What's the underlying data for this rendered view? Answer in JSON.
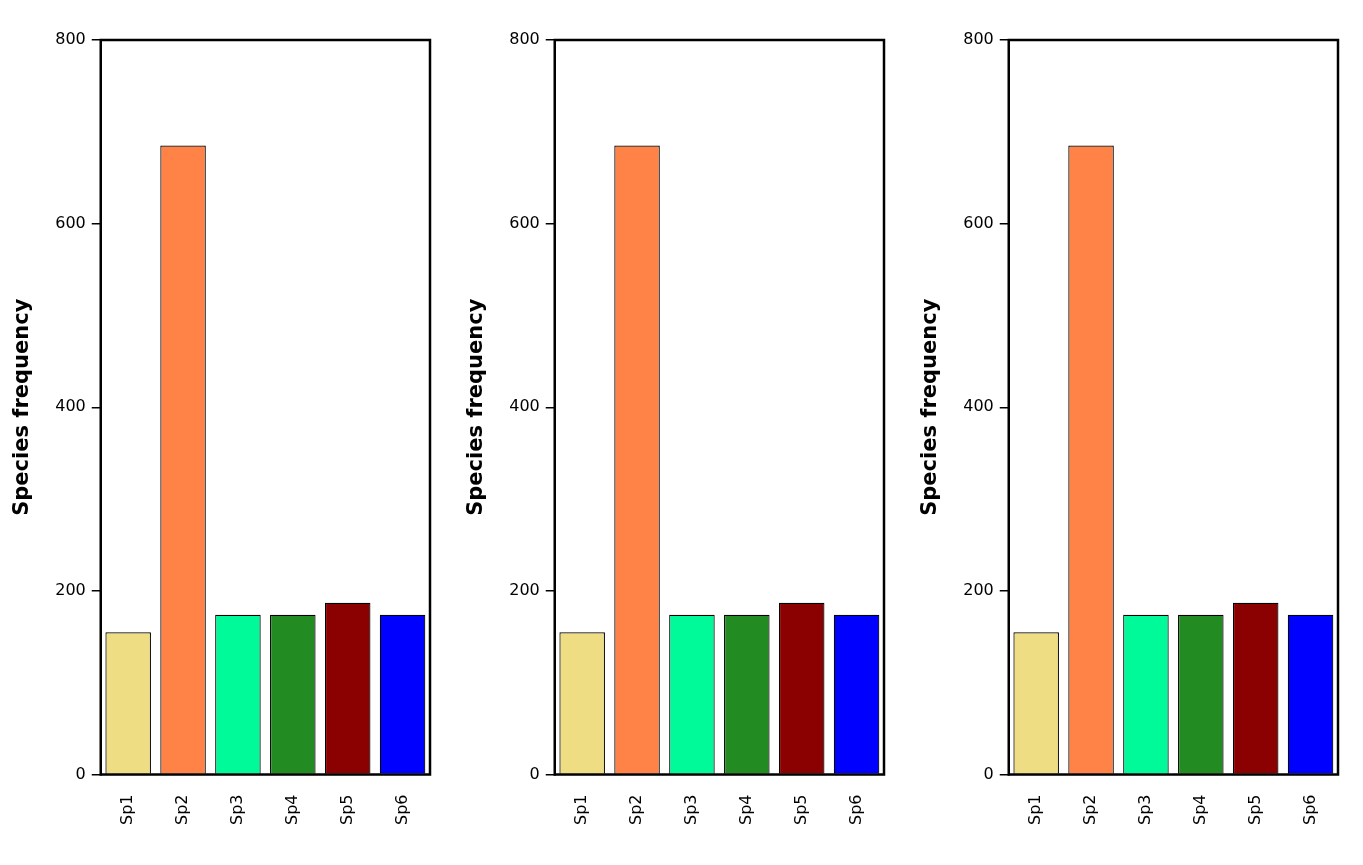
{
  "chart_data": [
    {
      "type": "bar",
      "y_label": "Species frequency",
      "categories": [
        "Sp1",
        "Sp2",
        "Sp3",
        "Sp4",
        "Sp5",
        "Sp6"
      ],
      "values": [
        155,
        685,
        174,
        174,
        187,
        174
      ],
      "colors": [
        "#EEDD82",
        "#FF8247",
        "#00FA9A",
        "#228B22",
        "#8B0000",
        "#0000FF"
      ],
      "ylim": [
        0,
        800
      ],
      "yticks": [
        0,
        200,
        400,
        600,
        800
      ],
      "grid": false
    },
    {
      "type": "bar",
      "y_label": "Species frequency",
      "categories": [
        "Sp1",
        "Sp2",
        "Sp3",
        "Sp4",
        "Sp5",
        "Sp6"
      ],
      "values": [
        155,
        685,
        174,
        174,
        187,
        174
      ],
      "colors": [
        "#EEDD82",
        "#FF8247",
        "#00FA9A",
        "#228B22",
        "#8B0000",
        "#0000FF"
      ],
      "ylim": [
        0,
        800
      ],
      "yticks": [
        0,
        200,
        400,
        600,
        800
      ],
      "grid": false
    },
    {
      "type": "bar",
      "y_label": "Species frequency",
      "categories": [
        "Sp1",
        "Sp2",
        "Sp3",
        "Sp4",
        "Sp5",
        "Sp6"
      ],
      "values": [
        155,
        685,
        174,
        174,
        187,
        174
      ],
      "colors": [
        "#EEDD82",
        "#FF8247",
        "#00FA9A",
        "#228B22",
        "#8B0000",
        "#0000FF"
      ],
      "ylim": [
        0,
        800
      ],
      "yticks": [
        0,
        200,
        400,
        600,
        800
      ],
      "grid": false
    }
  ]
}
